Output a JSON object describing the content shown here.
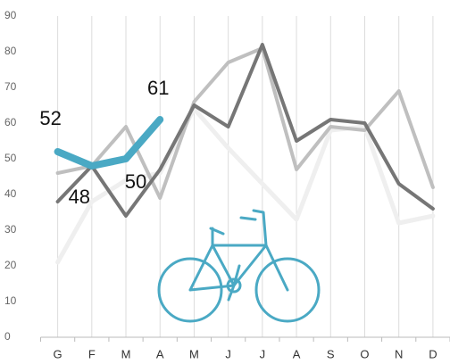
{
  "chart_data": {
    "type": "line",
    "categories": [
      "G",
      "F",
      "M",
      "A",
      "M",
      "J",
      "J",
      "A",
      "S",
      "O",
      "N",
      "D"
    ],
    "series": [
      {
        "color": "#efefef",
        "values": [
          21,
          38,
          44,
          46,
          64,
          53,
          43,
          33,
          58,
          59,
          32,
          34
        ]
      },
      {
        "color": "#bfbfbf",
        "values": [
          46,
          48,
          59,
          39,
          66,
          77,
          81,
          47,
          59,
          58,
          69,
          42
        ]
      },
      {
        "color": "#767676",
        "values": [
          38,
          48,
          34,
          47,
          65,
          59,
          82,
          55,
          61,
          60,
          43,
          36
        ]
      },
      {
        "color": "#4aa9c4",
        "values": [
          52,
          48,
          50,
          61,
          null,
          null,
          null,
          null,
          null,
          null,
          null,
          null
        ]
      }
    ],
    "ylim": [
      0,
      90
    ],
    "yticks": [
      0,
      10,
      20,
      30,
      40,
      50,
      60,
      70,
      80,
      90
    ],
    "grid": true
  }
}
